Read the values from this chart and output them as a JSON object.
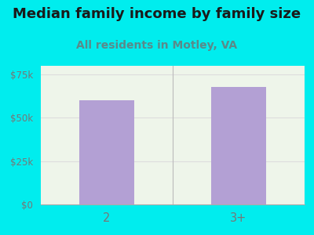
{
  "categories": [
    "2",
    "3+"
  ],
  "values": [
    60000,
    68000
  ],
  "bar_color": "#b3a0d4",
  "title": "Median family income by family size",
  "subtitle": "All residents in Motley, VA",
  "ylim": [
    0,
    80000
  ],
  "yticks": [
    0,
    25000,
    50000,
    75000
  ],
  "ytick_labels": [
    "$0",
    "$25k",
    "$50k",
    "$75k"
  ],
  "title_fontsize": 13,
  "subtitle_fontsize": 10,
  "background_color": "#00edee",
  "plot_bg_color": "#eef5ea",
  "tick_color": "#777777",
  "subtitle_color": "#5a8a8a",
  "title_color": "#1a1a1a",
  "grid_color": "#dddddd",
  "divider_color": "#bbbbbb",
  "bottom_line_color": "#aaaaaa"
}
